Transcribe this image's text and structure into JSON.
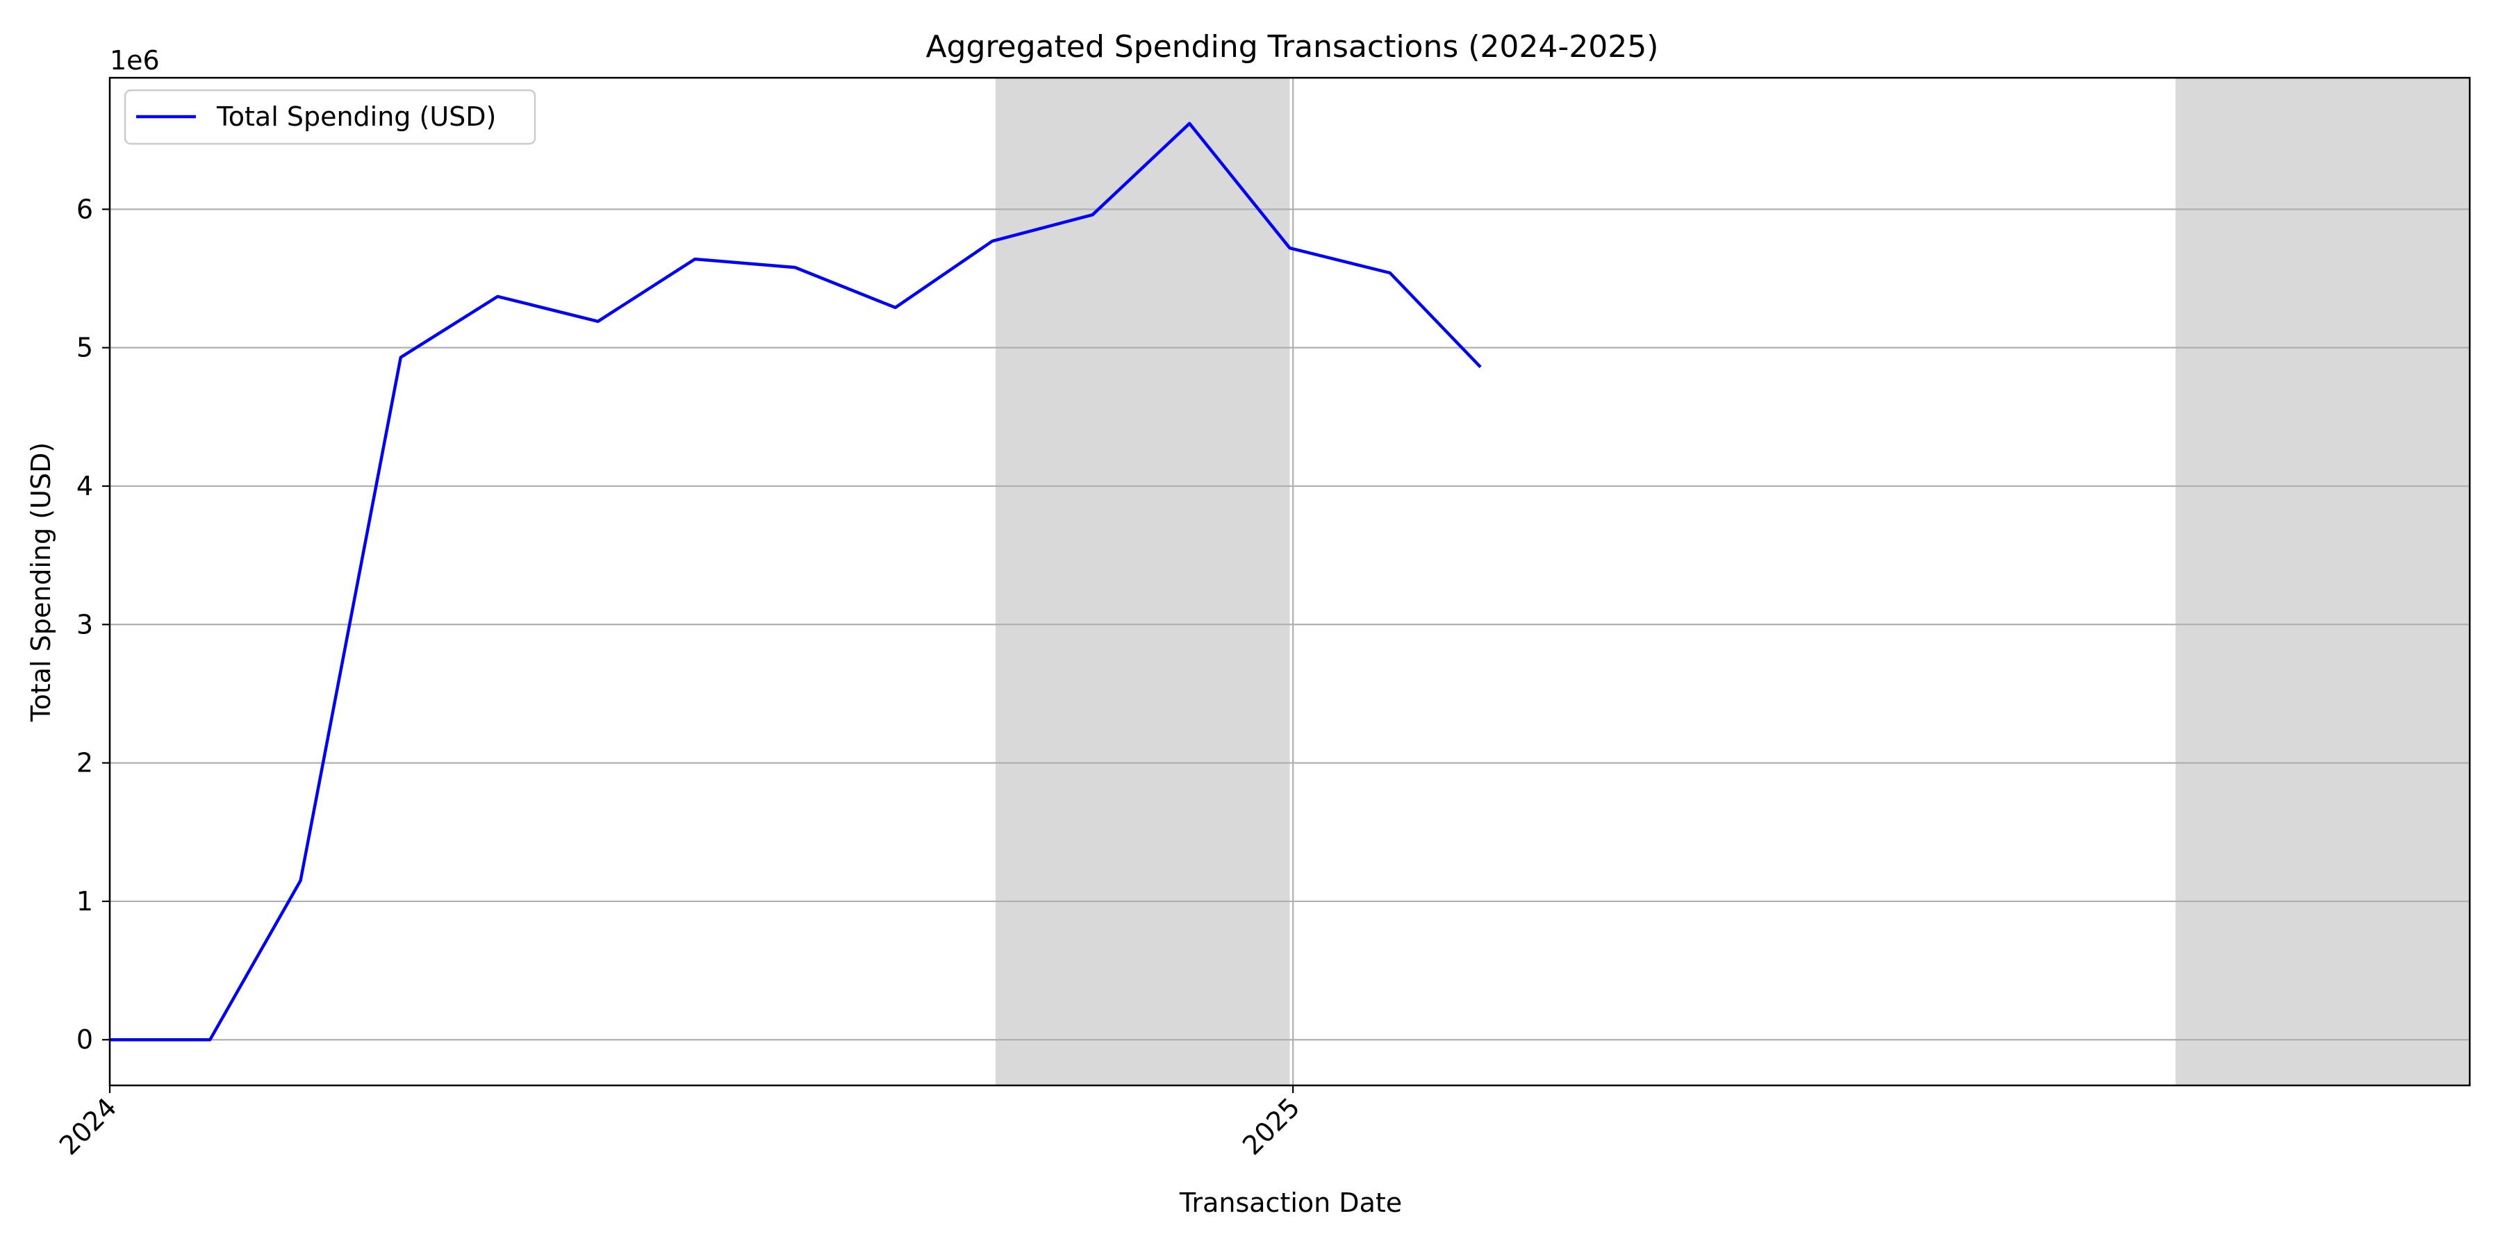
{
  "chart_data": {
    "type": "line",
    "title": "Aggregated Spending Transactions (2024-2025)",
    "xlabel": "Transaction Date",
    "ylabel": "Total Spending (USD)",
    "y_offset_label": "1e6",
    "y_scale_factor": 1000000,
    "xlim": [
      "2024-01-01",
      "2025-12-31"
    ],
    "ylim": [
      -330000,
      6950000
    ],
    "x_ticks": [
      {
        "date": "2024-01-01",
        "label": "2024"
      },
      {
        "date": "2025-01-01",
        "label": "2025"
      }
    ],
    "y_ticks": [
      0,
      1,
      2,
      3,
      4,
      5,
      6
    ],
    "grid": "horizontal",
    "legend_position": "upper-left",
    "shaded_regions": [
      {
        "start": "2024-10-01",
        "end": "2024-12-31"
      },
      {
        "start": "2025-10-01",
        "end": "2025-12-31"
      }
    ],
    "series": [
      {
        "name": "Total Spending (USD)",
        "color": "#0000ff",
        "x": [
          "2024-01-01",
          "2024-02-01",
          "2024-02-29",
          "2024-03-31",
          "2024-04-30",
          "2024-05-31",
          "2024-06-30",
          "2024-07-31",
          "2024-08-31",
          "2024-09-30",
          "2024-10-31",
          "2024-11-30",
          "2024-12-31",
          "2025-01-31",
          "2025-02-28"
        ],
        "y": [
          0,
          0,
          1150000,
          4930000,
          5370000,
          5190000,
          5640000,
          5580000,
          5290000,
          5770000,
          5960000,
          6620000,
          5720000,
          5540000,
          4860000
        ]
      }
    ]
  }
}
